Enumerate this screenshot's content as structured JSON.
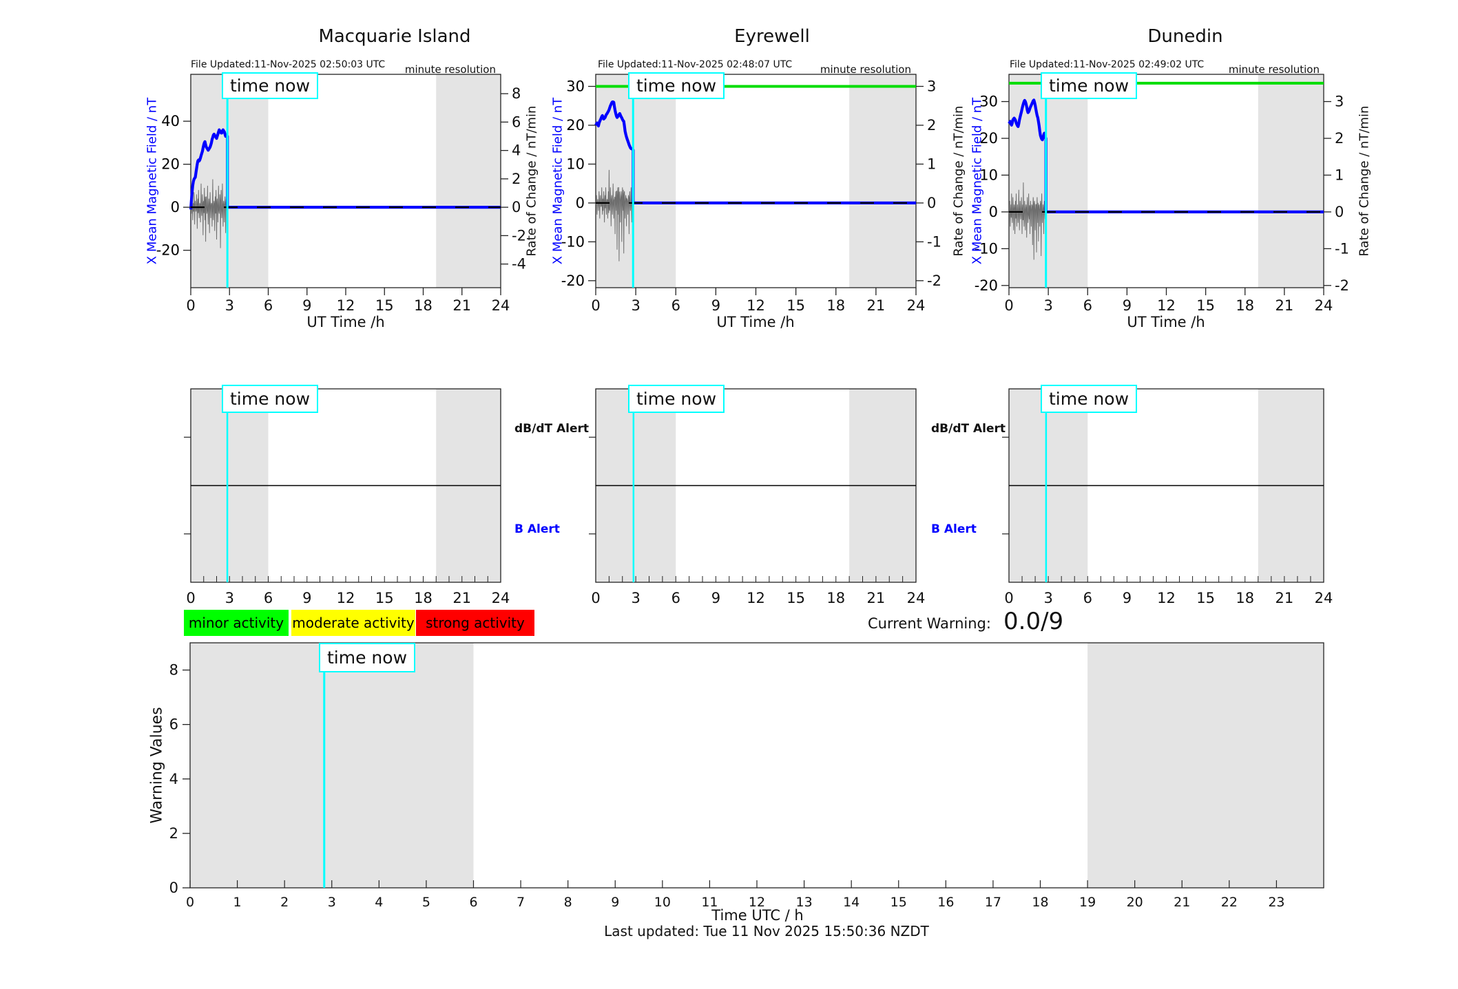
{
  "page": {
    "time_now_label": "time now",
    "current_warning_label": "Current Warning:",
    "current_warning_value": "0.0/9",
    "last_updated": "Last updated: Tue 11 Nov 2025 15:50:36 NZDT"
  },
  "colors": {
    "field_line": "#0000ff",
    "threshold_line": "#00dd00",
    "time_now_line": "#00ffff",
    "shaded_band": "#e4e4e4",
    "noise_line": "#6e6e6e",
    "axis": "#222222",
    "dashed_zero": "#000000",
    "legend_green": "#00ff00",
    "legend_yellow": "#ffff00",
    "legend_red": "#ff0000"
  },
  "legend": {
    "items": [
      {
        "label": "minor activity",
        "color": "#00ff00"
      },
      {
        "label": "moderate activity",
        "color": "#ffff00"
      },
      {
        "label": "strong activity",
        "color": "#ff0000"
      }
    ]
  },
  "alert_panels": {
    "dbdt_label": "dB/dT Alert",
    "b_label": "B Alert",
    "xlim": [
      0,
      24
    ],
    "xticks": [
      0,
      3,
      6,
      9,
      12,
      15,
      18,
      21,
      24
    ],
    "shaded_hours": [
      [
        0,
        6
      ],
      [
        19,
        24
      ]
    ],
    "time_now_h": 2.83
  },
  "chart_data": [
    {
      "type": "line",
      "station": "Macquarie Island",
      "file_updated": "File Updated:11-Nov-2025 02:50:03 UTC",
      "resolution_note": "minute resolution",
      "xlabel": "UT Time /h",
      "xlim": [
        0,
        24
      ],
      "xticks": [
        0,
        3,
        6,
        9,
        12,
        15,
        18,
        21,
        24
      ],
      "left_axis": {
        "label": "X Mean Magnetic Field / nT",
        "ticks": [
          40,
          20,
          0,
          -20
        ],
        "lim": [
          -37.4,
          61.8
        ]
      },
      "right_axis": {
        "label": "Rate of Change / nT/min",
        "ticks": [
          8,
          6,
          4,
          2,
          0,
          -2,
          -4
        ],
        "left_units_per_unit": 6.6
      },
      "threshold_green": null,
      "time_now_h": 2.835,
      "shaded_hours": [
        [
          0,
          6
        ],
        [
          19,
          24
        ]
      ],
      "forecast_value": 0,
      "series": {
        "x_start": 0,
        "x_step": 0.05,
        "field_nT": [
          -1,
          3,
          7,
          10,
          12,
          13,
          13.5,
          14,
          16,
          18,
          20,
          21.5,
          22,
          21.5,
          22,
          23,
          24,
          25,
          26,
          27.5,
          29,
          30,
          30.5,
          29,
          28,
          27.5,
          27,
          26.5,
          27,
          27.5,
          28,
          29,
          30,
          31.5,
          32.5,
          33.5,
          34,
          33.5,
          33,
          32.5,
          32,
          33,
          34,
          35,
          36,
          35.5,
          35,
          34.5,
          34.5,
          35.5,
          36,
          35.5,
          35,
          34,
          33,
          33,
          33
        ],
        "rate_noise_leftunits": [
          0,
          -3,
          4,
          -6,
          2,
          7,
          -8,
          3,
          -2,
          6,
          -10,
          4,
          8,
          -5,
          2,
          -7,
          11,
          -4,
          6,
          -13,
          3,
          9,
          -6,
          -16,
          5,
          -3,
          10,
          -8,
          4,
          -12,
          7,
          -5,
          2,
          -9,
          13,
          -6,
          3,
          -11,
          5,
          8,
          -15,
          4,
          -7,
          10,
          -3,
          6,
          -19,
          8,
          -5,
          11,
          -9,
          3,
          -7,
          5,
          -12,
          4,
          -2
        ]
      }
    },
    {
      "type": "line",
      "station": "Eyrewell",
      "file_updated": "File Updated:11-Nov-2025 02:48:07 UTC",
      "resolution_note": "minute resolution",
      "xlabel": "UT Time /h",
      "xlim": [
        0,
        24
      ],
      "xticks": [
        0,
        3,
        6,
        9,
        12,
        15,
        18,
        21,
        24
      ],
      "left_axis": {
        "label": "X Mean Magnetic Field / nT",
        "ticks": [
          30,
          20,
          10,
          0,
          -10,
          -20
        ],
        "lim": [
          -21.8,
          33.1
        ]
      },
      "right_axis": {
        "label": "Rate of Change / nT/min",
        "ticks": [
          3,
          2,
          1,
          0,
          -1,
          -2
        ],
        "left_units_per_unit": 10
      },
      "threshold_green": 30,
      "time_now_h": 2.8,
      "shaded_hours": [
        [
          0,
          6
        ],
        [
          19,
          24
        ]
      ],
      "forecast_value": 0,
      "series": {
        "x_start": 0,
        "x_step": 0.05,
        "field_nT": [
          20,
          20.3,
          20.6,
          20.2,
          19.8,
          20.5,
          21,
          21.4,
          21.8,
          22.2,
          22.5,
          22,
          21.6,
          21.8,
          22,
          22.4,
          22.8,
          23,
          23.3,
          23.6,
          24,
          24.5,
          25,
          25.4,
          25.8,
          26,
          26,
          25.9,
          24.8,
          23.8,
          23,
          22.4,
          22,
          22.2,
          22.5,
          22.8,
          23,
          22.6,
          22.2,
          21.9,
          21.5,
          21.2,
          21,
          19.8,
          18.5,
          17.7,
          17,
          16.5,
          16,
          15.5,
          15,
          14.6,
          14.2,
          14,
          13.9,
          14,
          13.6
        ],
        "rate_noise_leftunits": [
          0,
          2,
          -3,
          1,
          -2,
          3,
          -4,
          2,
          -1,
          4,
          -3,
          -2,
          3,
          -5,
          2,
          4,
          -3,
          1,
          -4,
          3,
          8.5,
          -2,
          4,
          -6,
          2,
          -3,
          5,
          -4,
          1,
          -8,
          3,
          -2,
          -12,
          4,
          -3,
          -15,
          2,
          -5,
          3,
          -10,
          4,
          -2,
          -13,
          3,
          -4,
          2,
          -6,
          1,
          -3,
          2,
          -8,
          3,
          -2,
          4,
          -5,
          2,
          -1
        ]
      }
    },
    {
      "type": "line",
      "station": "Dunedin",
      "file_updated": "File Updated:11-Nov-2025 02:49:02 UTC",
      "resolution_note": "minute resolution",
      "xlabel": "UT Time /h",
      "xlim": [
        0,
        24
      ],
      "xticks": [
        0,
        3,
        6,
        9,
        12,
        15,
        18,
        21,
        24
      ],
      "left_axis": {
        "label": "X Mean Magnetic Field / nT",
        "ticks": [
          30,
          20,
          10,
          0,
          -10,
          -20
        ],
        "lim": [
          -20.6,
          37.4
        ]
      },
      "right_axis": {
        "label": "Rate of Change / nT/min",
        "ticks": [
          3,
          2,
          1,
          0,
          -1,
          -2
        ],
        "left_units_per_unit": 10
      },
      "threshold_green": 35,
      "time_now_h": 2.82,
      "shaded_hours": [
        [
          0,
          6
        ],
        [
          19,
          24
        ]
      ],
      "forecast_value": 0,
      "series": {
        "x_start": 0,
        "x_step": 0.05,
        "field_nT": [
          24,
          24.3,
          24.6,
          23.9,
          23.6,
          24.2,
          25,
          25.3,
          25.5,
          25.2,
          24.9,
          24.2,
          23.8,
          23.4,
          23.2,
          24,
          25,
          25.8,
          26.5,
          27.2,
          28,
          28.8,
          29.4,
          30,
          30.3,
          30,
          29.4,
          28.6,
          27.6,
          27,
          27.2,
          27.6,
          28.2,
          28.6,
          29,
          29.4,
          29.8,
          30.2,
          30.4,
          29.8,
          29,
          28,
          27,
          26.2,
          25.6,
          24.6,
          23.4,
          22,
          20.8,
          20.2,
          19.8,
          19.6,
          20.2,
          21,
          21.4,
          20.8,
          20
        ],
        "rate_noise_leftunits": [
          0,
          3,
          -4,
          2,
          5,
          -3,
          4,
          -5,
          2,
          -6,
          3,
          5,
          -4,
          2,
          -3,
          6,
          -5,
          3,
          -2,
          4,
          -6,
          2,
          8,
          -4,
          3,
          -5,
          2,
          -7,
          4,
          -3,
          5,
          -2,
          -6,
          3,
          -4,
          2,
          -9,
          4,
          -13,
          3,
          -5,
          2,
          -11,
          4,
          -3,
          -8,
          2,
          -4,
          3,
          -12,
          5,
          -3,
          2,
          -6,
          3,
          -2,
          1
        ]
      }
    },
    {
      "type": "line",
      "title": "Warning Values",
      "ylabel": "Warning Values",
      "xlabel": "Time UTC / h",
      "ylim": [
        0,
        9
      ],
      "yticks": [
        0,
        2,
        4,
        6,
        8
      ],
      "xlim": [
        0,
        24
      ],
      "xticks": [
        0,
        1,
        2,
        3,
        4,
        5,
        6,
        7,
        8,
        9,
        10,
        11,
        12,
        13,
        14,
        15,
        16,
        17,
        18,
        19,
        20,
        21,
        22,
        23
      ],
      "shaded_hours": [
        [
          0,
          6
        ],
        [
          19,
          24
        ]
      ],
      "time_now_h": 2.84,
      "series": []
    }
  ]
}
